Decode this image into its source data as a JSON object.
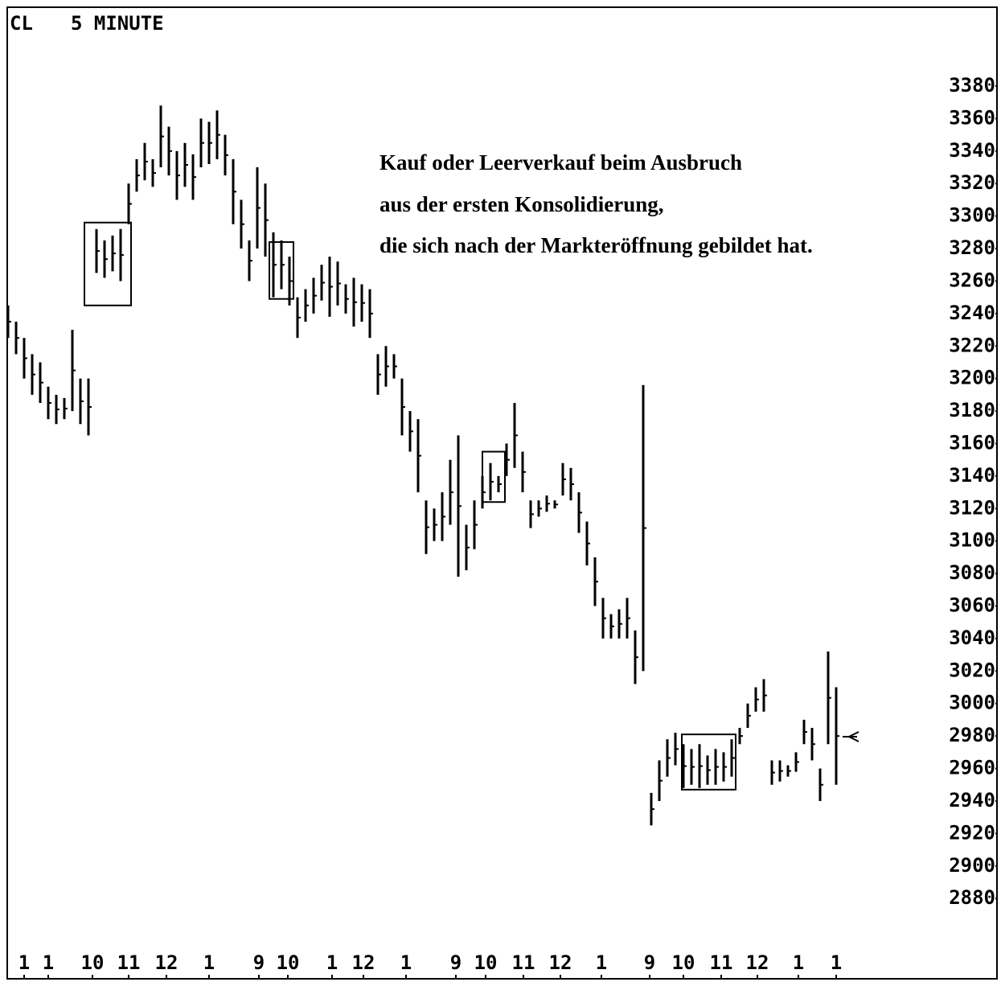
{
  "chart_data": {
    "type": "range",
    "symbol": "CL",
    "title": "5 MINUTE",
    "annotation": [
      "Kauf oder Leerverkauf beim Ausbruch",
      "aus der ersten Konsolidierung,",
      "die sich nach der Markteröffnung gebildet hat."
    ],
    "color": "#000000",
    "xlim": [
      0,
      116
    ],
    "ylim": [
      2840,
      3430
    ],
    "yticks": [
      2880,
      2900,
      2920,
      2940,
      2960,
      2980,
      3000,
      3020,
      3040,
      3060,
      3080,
      3100,
      3120,
      3140,
      3160,
      3180,
      3200,
      3220,
      3240,
      3260,
      3280,
      3300,
      3320,
      3340,
      3360,
      3380
    ],
    "xticks": [
      {
        "value": 2,
        "label": "1"
      },
      {
        "value": 5,
        "label": "1"
      },
      {
        "value": 10.5,
        "label": "10"
      },
      {
        "value": 15,
        "label": "11"
      },
      {
        "value": 19.7,
        "label": "12"
      },
      {
        "value": 25,
        "label": "1"
      },
      {
        "value": 31.2,
        "label": "9"
      },
      {
        "value": 34.8,
        "label": "10"
      },
      {
        "value": 40.3,
        "label": "1"
      },
      {
        "value": 44.2,
        "label": "12"
      },
      {
        "value": 49.5,
        "label": "1"
      },
      {
        "value": 55.7,
        "label": "9"
      },
      {
        "value": 59.4,
        "label": "10"
      },
      {
        "value": 64.1,
        "label": "11"
      },
      {
        "value": 68.7,
        "label": "12"
      },
      {
        "value": 73.8,
        "label": "1"
      },
      {
        "value": 79.8,
        "label": "9"
      },
      {
        "value": 84,
        "label": "10"
      },
      {
        "value": 88.7,
        "label": "11"
      },
      {
        "value": 93.2,
        "label": "12"
      },
      {
        "value": 98.3,
        "label": "1"
      },
      {
        "value": 103,
        "label": "1"
      }
    ],
    "high": [
      3245,
      3235,
      3225,
      3215,
      3210,
      3195,
      3190,
      3188,
      3230,
      3200,
      3200,
      3292,
      3285,
      3288,
      3292,
      3320,
      3335,
      3345,
      3335,
      3368,
      3355,
      3340,
      3345,
      3338,
      3360,
      3358,
      3365,
      3350,
      3335,
      3310,
      3285,
      3330,
      3320,
      3290,
      3285,
      3275,
      3250,
      3255,
      3262,
      3270,
      3275,
      3272,
      3258,
      3262,
      3258,
      3255,
      3215,
      3220,
      3215,
      3200,
      3180,
      3175,
      3125,
      3120,
      3130,
      3150,
      3165,
      3110,
      3125,
      3140,
      3148,
      3140,
      3160,
      3185,
      3155,
      3125,
      3125,
      3128,
      3125,
      3148,
      3145,
      3130,
      3112,
      3090,
      3065,
      3055,
      3058,
      3065,
      3045,
      3196,
      2945,
      2965,
      2978,
      2982,
      2975,
      2972,
      2975,
      2968,
      2972,
      2970,
      2978,
      2985,
      3000,
      3010,
      3015,
      2965,
      2965,
      2962,
      2970,
      2990,
      2985,
      2960,
      3032,
      3010
    ],
    "low": [
      3225,
      3215,
      3200,
      3190,
      3185,
      3175,
      3172,
      3175,
      3180,
      3172,
      3165,
      3265,
      3262,
      3266,
      3260,
      3295,
      3315,
      3322,
      3318,
      3330,
      3325,
      3310,
      3318,
      3310,
      3330,
      3332,
      3335,
      3325,
      3295,
      3280,
      3260,
      3280,
      3275,
      3250,
      3255,
      3245,
      3225,
      3235,
      3240,
      3248,
      3238,
      3245,
      3240,
      3232,
      3235,
      3225,
      3190,
      3195,
      3200,
      3165,
      3155,
      3130,
      3092,
      3100,
      3100,
      3110,
      3078,
      3082,
      3095,
      3120,
      3125,
      3130,
      3140,
      3145,
      3130,
      3108,
      3115,
      3118,
      3120,
      3128,
      3125,
      3105,
      3085,
      3060,
      3040,
      3040,
      3040,
      3040,
      3012,
      3020,
      2925,
      2940,
      2955,
      2962,
      2948,
      2950,
      2948,
      2950,
      2950,
      2952,
      2955,
      2975,
      2985,
      2995,
      2995,
      2950,
      2952,
      2955,
      2958,
      2975,
      2965,
      2940,
      2975,
      2950
    ],
    "boxes": [
      {
        "x": [
          9.5,
          15.3
        ],
        "y": [
          3245,
          3296
        ]
      },
      {
        "x": [
          32.5,
          35.5
        ],
        "y": [
          3249,
          3284
        ]
      },
      {
        "x": [
          59,
          61.8
        ],
        "y": [
          3124,
          3155
        ]
      },
      {
        "x": [
          83.8,
          90.5
        ],
        "y": [
          2947,
          2981
        ]
      }
    ]
  }
}
